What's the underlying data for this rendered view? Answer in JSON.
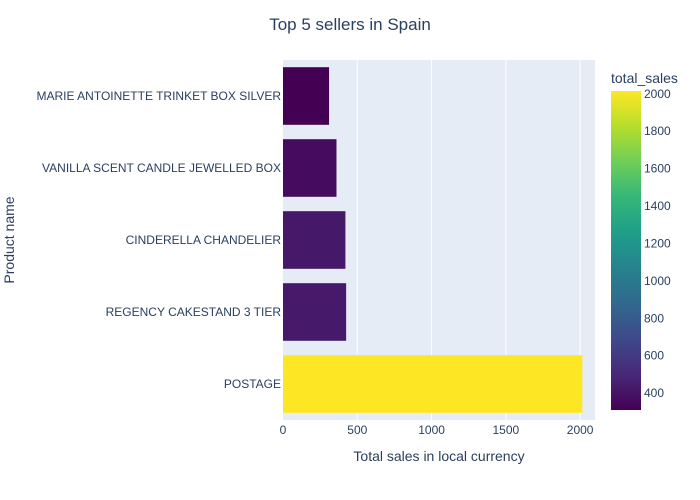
{
  "chart_data": {
    "type": "bar",
    "orientation": "horizontal",
    "title": "Top 5 sellers in Spain",
    "xlabel": "Total sales in local currency",
    "ylabel": "Product name",
    "categories": [
      "MARIE ANTOINETTE TRINKET BOX SILVER",
      "VANILLA SCENT CANDLE JEWELLED BOX",
      "CINDERELLA CHANDELIER",
      "REGENCY CAKESTAND 3 TIER",
      "POSTAGE"
    ],
    "values": [
      310,
      360,
      420,
      425,
      2015
    ],
    "xlim": [
      0,
      2100
    ],
    "xticks": [
      0,
      500,
      1000,
      1500,
      2000
    ],
    "xtick_labels": [
      "0",
      "500",
      "1000",
      "1500",
      "2000"
    ],
    "grid": "vertical",
    "colorscale": "Viridis",
    "colorbar": {
      "title": "total_sales",
      "range": [
        310,
        2015
      ],
      "ticks": [
        400,
        600,
        800,
        1000,
        1200,
        1400,
        1600,
        1800,
        2000
      ],
      "tick_labels": [
        "400",
        "600",
        "800",
        "1000",
        "1200",
        "1400",
        "1600",
        "1800",
        "2000"
      ]
    }
  },
  "colors": {
    "plot_bg": "#e5ecf6",
    "grid": "#ffffff",
    "text": "#2a3f5f"
  }
}
